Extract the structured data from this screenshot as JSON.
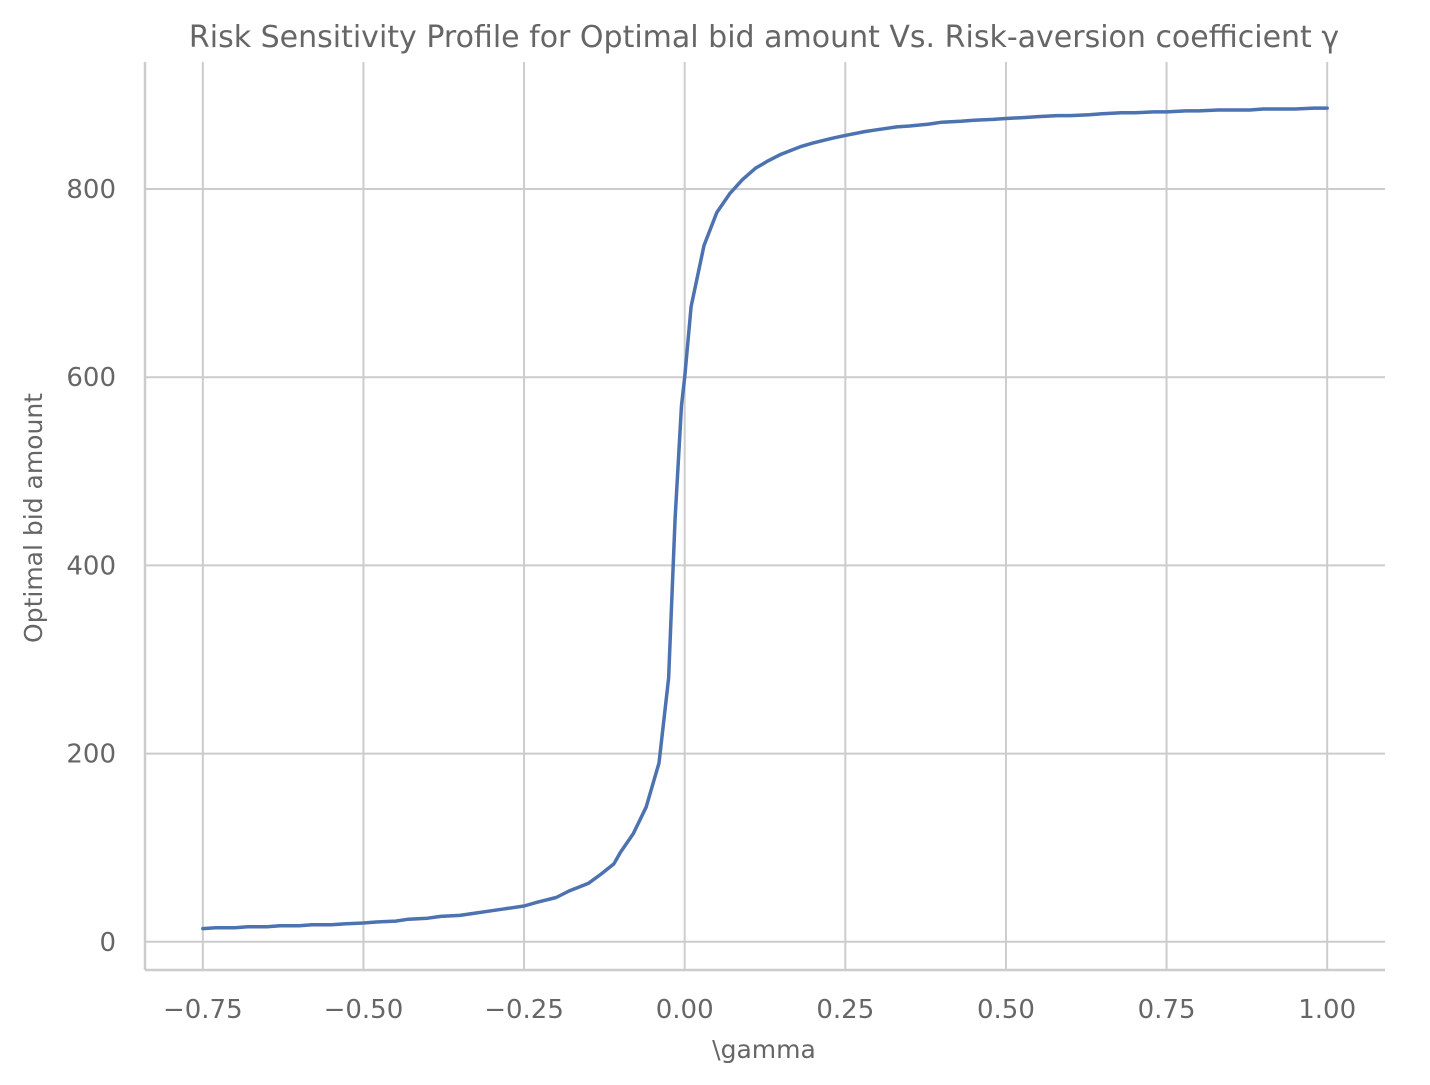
{
  "chart_data": {
    "type": "line",
    "title": "Risk Sensitivity Profile for Optimal bid amount Vs. Risk-aversion coefficient γ",
    "xlabel": "\\gamma",
    "ylabel": "Optimal bid amount",
    "xlim": [
      -0.84,
      1.09
    ],
    "ylim": [
      -30,
      935
    ],
    "xticks": [
      -0.75,
      -0.5,
      -0.25,
      0.0,
      0.25,
      0.5,
      0.75,
      1.0
    ],
    "xtick_labels": [
      "−0.75",
      "−0.50",
      "−0.25",
      "0.00",
      "0.25",
      "0.50",
      "0.75",
      "1.00"
    ],
    "yticks": [
      0,
      200,
      400,
      600,
      800
    ],
    "ytick_labels": [
      "0",
      "200",
      "400",
      "600",
      "800"
    ],
    "grid": true,
    "colors": {
      "line": "#4c72b0",
      "grid": "#cccccc",
      "text": "#666666"
    },
    "series": [
      {
        "x": [
          -0.75,
          -0.73,
          -0.7,
          -0.68,
          -0.65,
          -0.63,
          -0.6,
          -0.58,
          -0.55,
          -0.53,
          -0.5,
          -0.48,
          -0.45,
          -0.43,
          -0.4,
          -0.38,
          -0.35,
          -0.33,
          -0.3,
          -0.28,
          -0.25,
          -0.23,
          -0.2,
          -0.18,
          -0.15,
          -0.13,
          -0.11,
          -0.1,
          -0.08,
          -0.06,
          -0.04,
          -0.025,
          -0.015,
          -0.005,
          0.0,
          0.01,
          0.03,
          0.05,
          0.07,
          0.09,
          0.11,
          0.13,
          0.15,
          0.18,
          0.2,
          0.23,
          0.25,
          0.28,
          0.3,
          0.33,
          0.35,
          0.38,
          0.4,
          0.43,
          0.45,
          0.48,
          0.5,
          0.53,
          0.55,
          0.58,
          0.6,
          0.63,
          0.65,
          0.68,
          0.7,
          0.73,
          0.75,
          0.78,
          0.8,
          0.83,
          0.85,
          0.88,
          0.9,
          0.93,
          0.95,
          0.98,
          1.0
        ],
        "y": [
          14,
          15,
          15,
          16,
          16,
          17,
          17,
          18,
          18,
          19,
          20,
          21,
          22,
          24,
          25,
          27,
          28,
          30,
          33,
          35,
          38,
          42,
          47,
          54,
          62,
          72,
          83,
          95,
          115,
          143,
          190,
          280,
          450,
          570,
          600,
          675,
          740,
          775,
          795,
          810,
          822,
          830,
          837,
          845,
          849,
          854,
          857,
          861,
          863,
          866,
          867,
          869,
          871,
          872,
          873,
          874,
          875,
          876,
          877,
          878,
          878,
          879,
          880,
          881,
          881,
          882,
          882,
          883,
          883,
          884,
          884,
          884,
          885,
          885,
          885,
          886,
          886
        ]
      }
    ]
  }
}
